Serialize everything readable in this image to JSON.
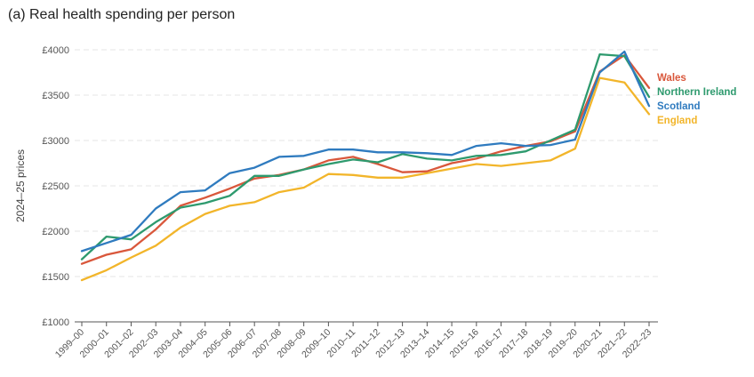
{
  "chart_data": {
    "type": "line",
    "title": "(a) Real health spending per person",
    "ylabel": "2024–25 prices",
    "xlabel": "",
    "ylim": [
      1000,
      4000
    ],
    "yticks": [
      1000,
      1500,
      2000,
      2500,
      3000,
      3500,
      4000
    ],
    "ytick_labels": [
      "£1000",
      "£1500",
      "£2000",
      "£2500",
      "£3000",
      "£3500",
      "£4000"
    ],
    "grid": true,
    "legend_position": "right",
    "categories": [
      "1999–00",
      "2000–01",
      "2001–02",
      "2002–03",
      "2003–04",
      "2004–05",
      "2005–06",
      "2006–07",
      "2007–08",
      "2008–09",
      "2009–10",
      "2010–11",
      "2011–12",
      "2012–13",
      "2013–14",
      "2014–15",
      "2015–16",
      "2016–17",
      "2017–18",
      "2018–19",
      "2019–20",
      "2020–21",
      "2021–22",
      "2022–23"
    ],
    "series": [
      {
        "name": "Wales",
        "color": "#d9573b",
        "values": [
          1640,
          1740,
          1800,
          2020,
          2280,
          2370,
          2470,
          2580,
          2620,
          2680,
          2780,
          2820,
          2740,
          2650,
          2660,
          2750,
          2800,
          2880,
          2940,
          2990,
          3100,
          3760,
          3940,
          3580
        ]
      },
      {
        "name": "Northern Ireland",
        "color": "#2e9a6e",
        "values": [
          1690,
          1940,
          1910,
          2100,
          2260,
          2310,
          2390,
          2610,
          2610,
          2680,
          2740,
          2790,
          2760,
          2850,
          2800,
          2780,
          2830,
          2840,
          2880,
          3000,
          3120,
          3950,
          3930,
          3480
        ]
      },
      {
        "name": "Scotland",
        "color": "#2f7bbf",
        "values": [
          1780,
          1870,
          1960,
          2250,
          2430,
          2450,
          2640,
          2700,
          2820,
          2830,
          2900,
          2900,
          2870,
          2870,
          2860,
          2840,
          2940,
          2970,
          2940,
          2950,
          3010,
          3750,
          3980,
          3380
        ]
      },
      {
        "name": "England",
        "color": "#f2b52a",
        "values": [
          1460,
          1570,
          1710,
          1840,
          2040,
          2190,
          2280,
          2320,
          2430,
          2480,
          2630,
          2620,
          2590,
          2590,
          2640,
          2690,
          2740,
          2720,
          2750,
          2780,
          2910,
          3690,
          3640,
          3290
        ]
      }
    ]
  }
}
